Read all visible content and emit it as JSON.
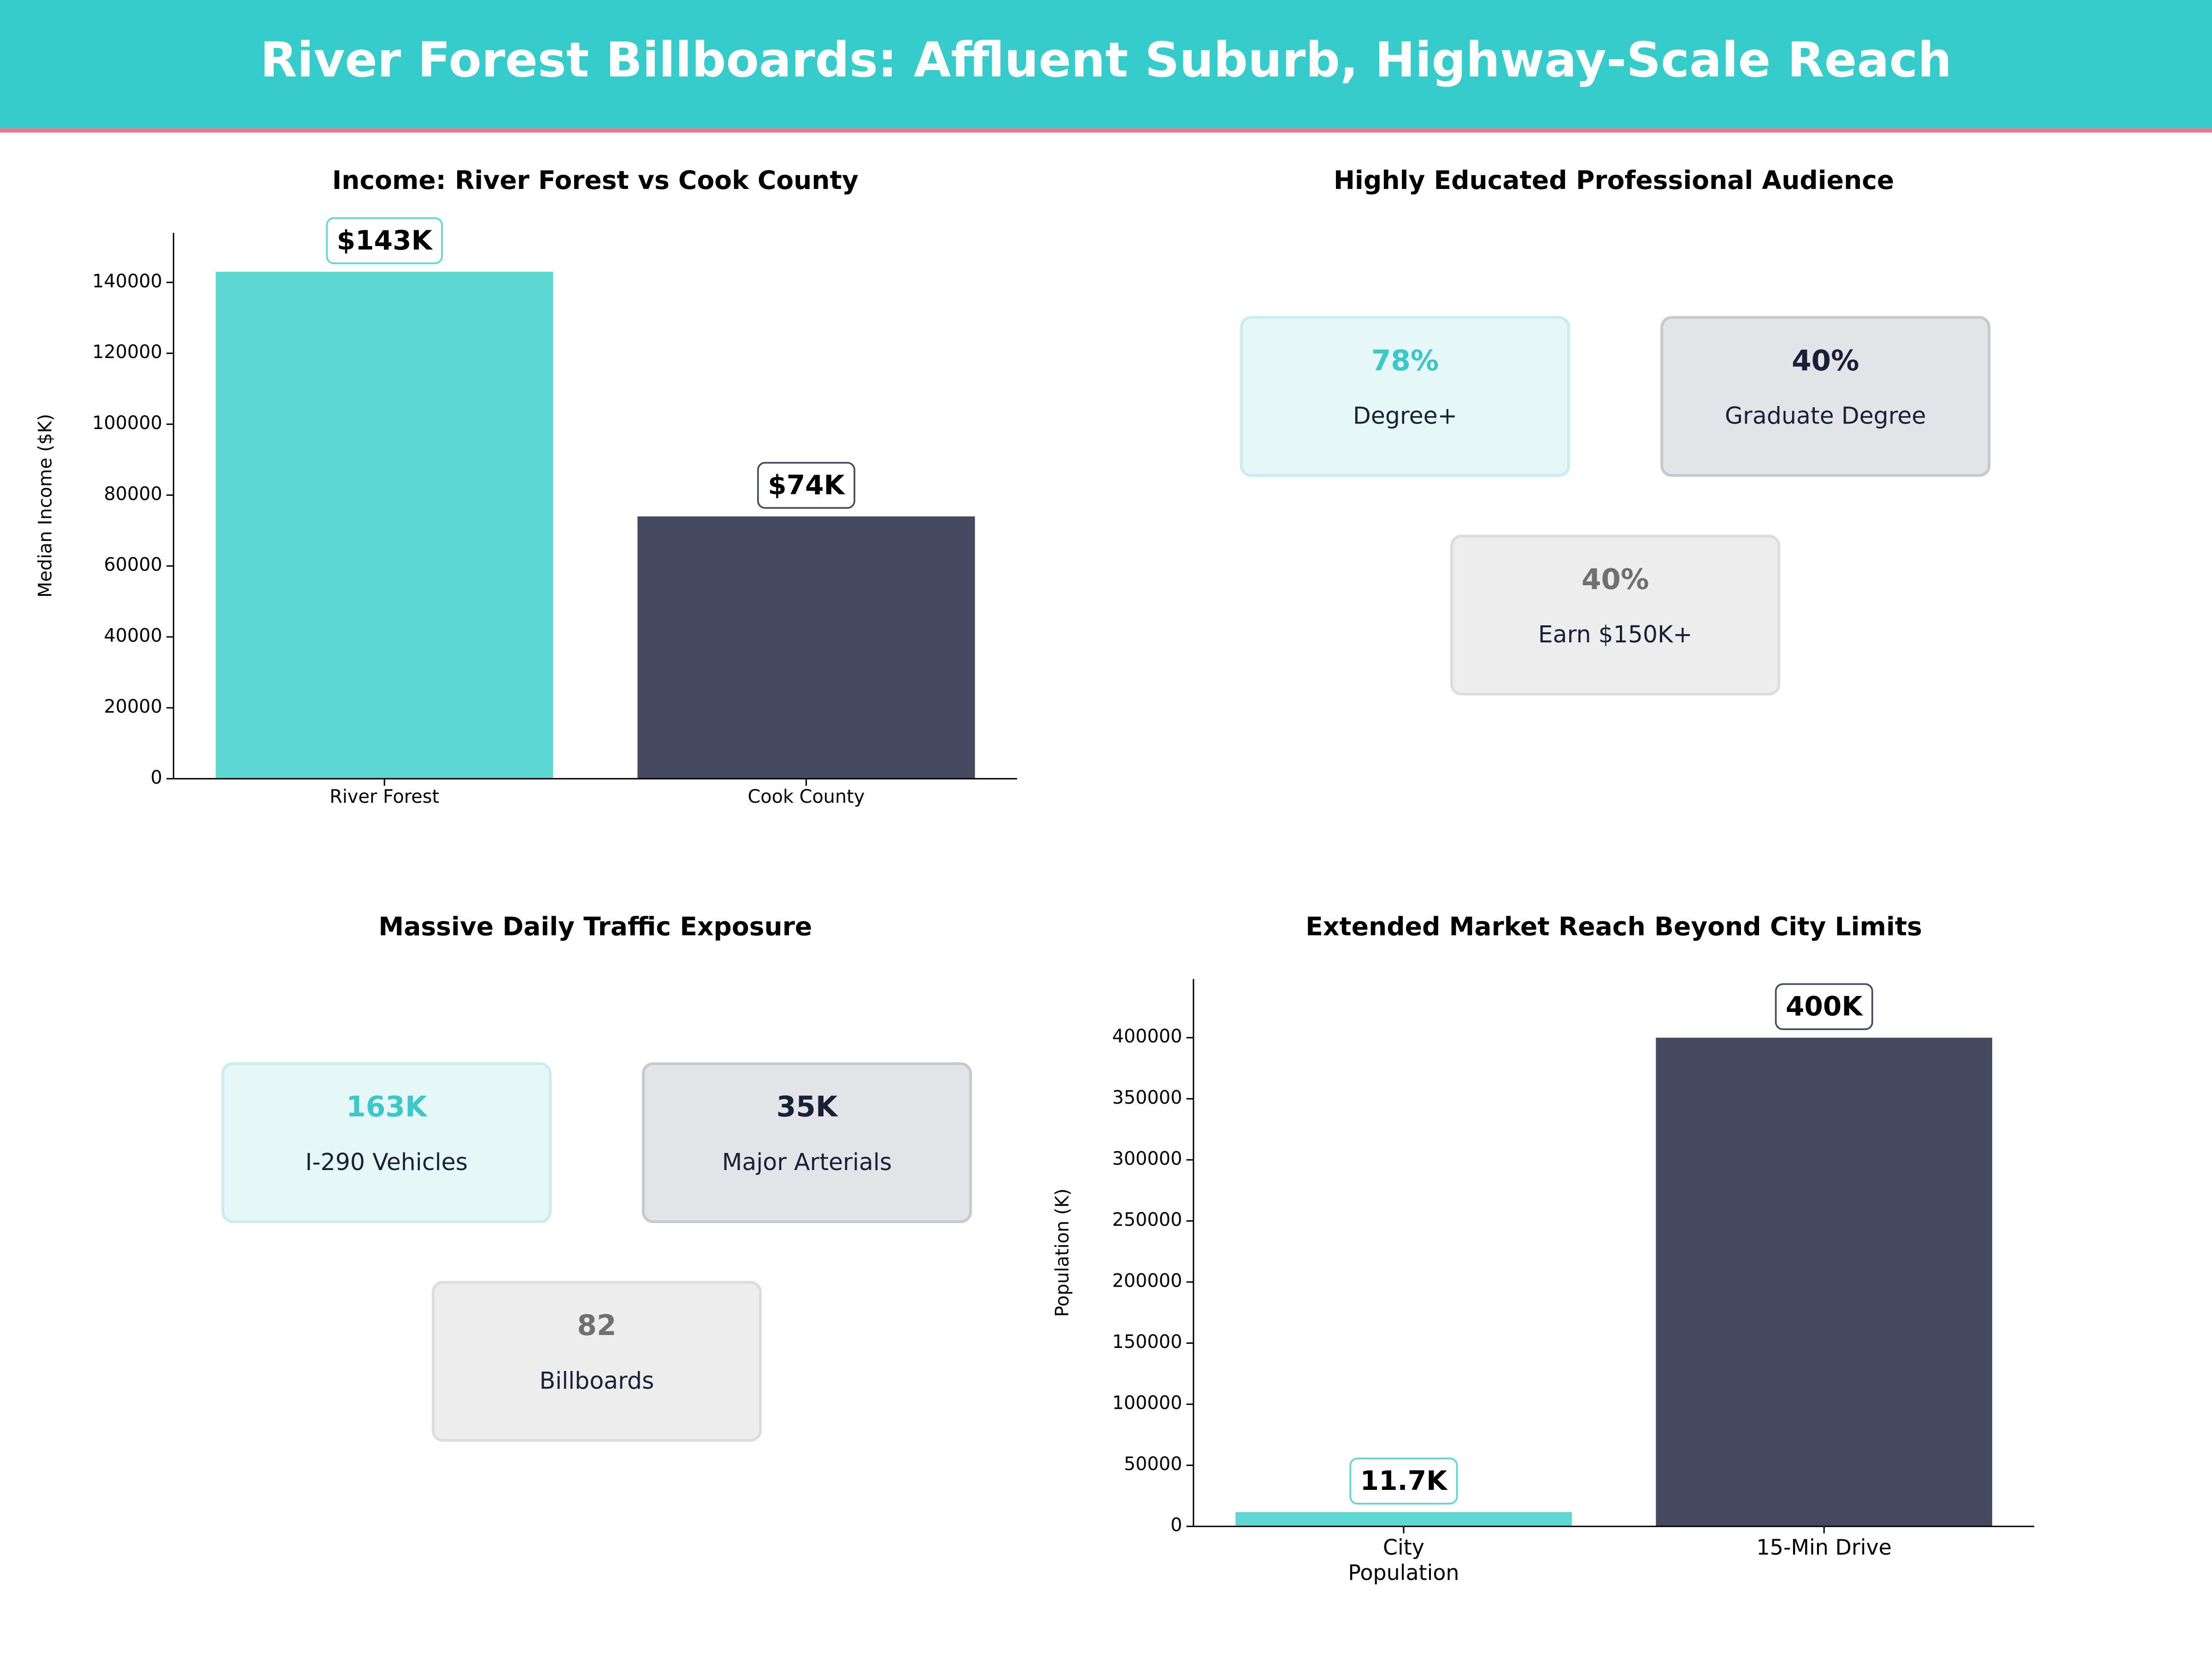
{
  "header": {
    "title": "River Forest Billboards: Affluent Suburb, Highway-Scale Reach"
  },
  "chart_data": [
    {
      "type": "bar",
      "title": "Income: River Forest vs Cook County",
      "ylabel": "Median Income ($K)",
      "categories": [
        "River Forest",
        "Cook County"
      ],
      "values": [
        143000,
        74000
      ],
      "value_labels": [
        "$143K",
        "$74K"
      ],
      "colors": [
        "#5dd8d4",
        "#464a60"
      ],
      "ylim": [
        0,
        154000
      ],
      "yticks": [
        0,
        20000,
        40000,
        60000,
        80000,
        100000,
        120000,
        140000
      ],
      "grid": false
    },
    {
      "type": "bar",
      "title": "Extended Market Reach Beyond City Limits",
      "ylabel": "Population (K)",
      "categories": [
        "City\nPopulation",
        "15-Min Drive"
      ],
      "values": [
        11700,
        400000
      ],
      "value_labels": [
        "11.7K",
        "400K"
      ],
      "colors": [
        "#5dd8d4",
        "#464a60"
      ],
      "ylim": [
        0,
        448000
      ],
      "yticks": [
        0,
        50000,
        100000,
        150000,
        200000,
        250000,
        300000,
        350000,
        400000
      ],
      "grid": false
    }
  ],
  "stats": [
    {
      "title": "Highly Educated Professional Audience",
      "cards": [
        {
          "value": "78%",
          "label": "Degree+"
        },
        {
          "value": "40%",
          "label": "Graduate Degree"
        },
        {
          "value": "40%",
          "label": "Earn $150K+"
        }
      ]
    },
    {
      "title": "Massive Daily Traffic Exposure",
      "cards": [
        {
          "value": "163K",
          "label": "I-290  Vehicles"
        },
        {
          "value": "35K",
          "label": "Major Arterials"
        },
        {
          "value": "82",
          "label": "Billboards"
        }
      ]
    }
  ]
}
